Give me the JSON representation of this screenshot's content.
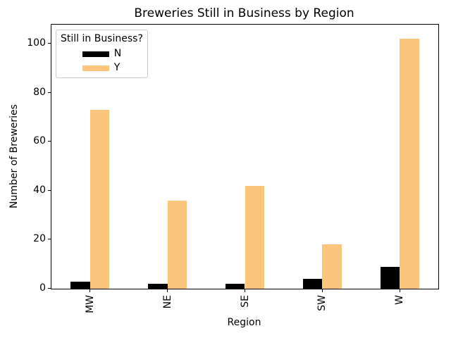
{
  "chart_data": {
    "type": "bar",
    "title": "Breweries Still in Business by Region",
    "xlabel": "Region",
    "ylabel": "Number of Breweries",
    "legend_title": "Still in Business?",
    "legend_position": "upper left",
    "categories": [
      "MW",
      "NE",
      "SE",
      "SW",
      "W"
    ],
    "series": [
      {
        "name": "N",
        "color": "#000000",
        "values": [
          3,
          2,
          2,
          4,
          9
        ]
      },
      {
        "name": "Y",
        "color": "#FCC57C",
        "values": [
          73,
          36,
          42,
          18,
          102
        ]
      }
    ],
    "yticks": [
      0,
      20,
      40,
      60,
      80,
      100
    ],
    "ylim": [
      0,
      107.8
    ],
    "grid": false,
    "background_color": "#ffffff",
    "spine_color": "#000000",
    "legend_border_color": "#cccccc"
  }
}
